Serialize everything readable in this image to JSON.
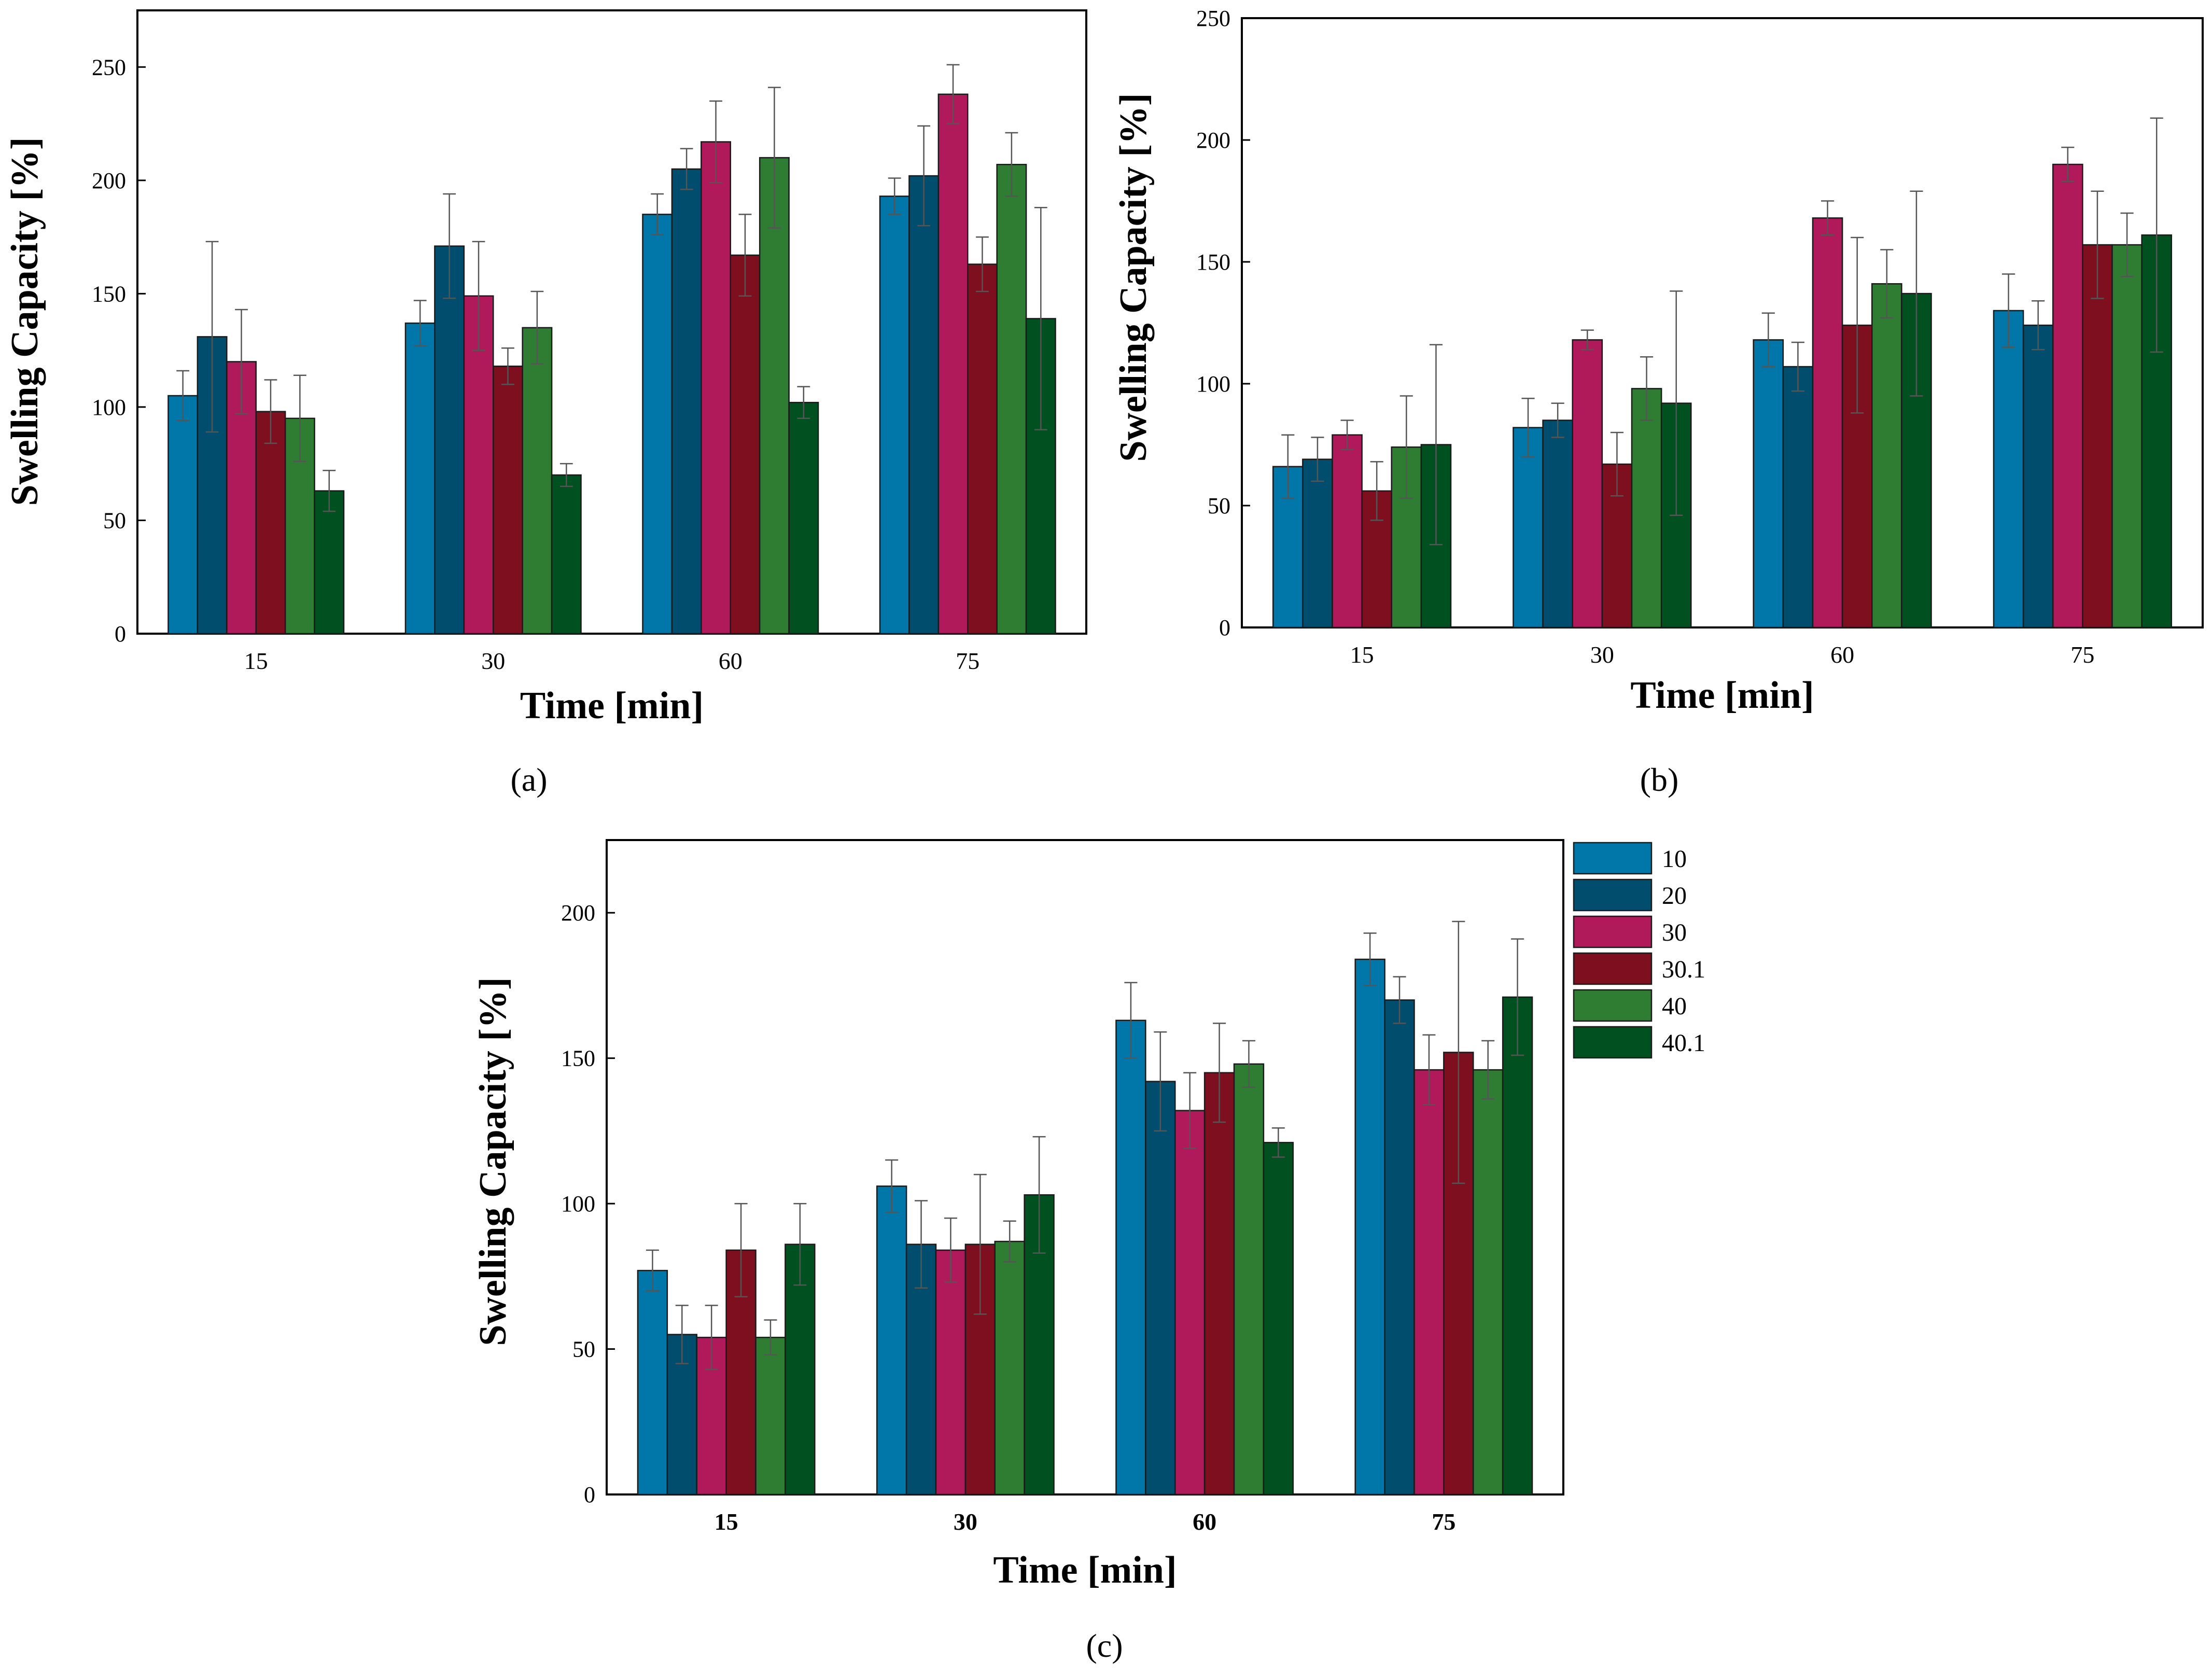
{
  "colors": {
    "10": "#0077a8",
    "20": "#004d6e",
    "30": "#b0195a",
    "30.1": "#7d0f1f",
    "40": "#2e7d32",
    "40.1": "#00511f"
  },
  "legend": {
    "entries": [
      "10",
      "20",
      "30",
      "30.1",
      "40",
      "40.1"
    ]
  },
  "chart_data": [
    {
      "type": "bar",
      "panel_label": "(a)",
      "xlabel": "Time [min]",
      "ylabel": "Swelling Capacity [%]",
      "categories": [
        "15",
        "30",
        "60",
        "75"
      ],
      "ylim": [
        0,
        275
      ],
      "yticks": [
        0,
        50,
        100,
        150,
        200,
        250
      ],
      "series": [
        {
          "name": "10",
          "values": [
            105,
            137,
            185,
            193
          ],
          "errors": [
            11,
            10,
            9,
            8
          ]
        },
        {
          "name": "20",
          "values": [
            131,
            171,
            205,
            202
          ],
          "errors": [
            42,
            23,
            9,
            22
          ]
        },
        {
          "name": "30",
          "values": [
            120,
            149,
            217,
            238
          ],
          "errors": [
            23,
            24,
            18,
            13
          ]
        },
        {
          "name": "30.1",
          "values": [
            98,
            118,
            167,
            163
          ],
          "errors": [
            14,
            8,
            18,
            12
          ]
        },
        {
          "name": "40",
          "values": [
            95,
            135,
            210,
            207
          ],
          "errors": [
            19,
            16,
            31,
            14
          ]
        },
        {
          "name": "40.1",
          "values": [
            63,
            70,
            102,
            139
          ],
          "errors": [
            9,
            5,
            7,
            49
          ]
        }
      ]
    },
    {
      "type": "bar",
      "panel_label": "(b)",
      "xlabel": "Time [min]",
      "ylabel": "Swelling Capacity [%]",
      "categories": [
        "15",
        "30",
        "60",
        "75"
      ],
      "ylim": [
        0,
        250
      ],
      "yticks": [
        0,
        50,
        100,
        150,
        200,
        250
      ],
      "series": [
        {
          "name": "10",
          "values": [
            66,
            82,
            118,
            130
          ],
          "errors": [
            13,
            12,
            11,
            15
          ]
        },
        {
          "name": "20",
          "values": [
            69,
            85,
            107,
            124
          ],
          "errors": [
            9,
            7,
            10,
            10
          ]
        },
        {
          "name": "30",
          "values": [
            79,
            118,
            168,
            190
          ],
          "errors": [
            6,
            4,
            7,
            7
          ]
        },
        {
          "name": "30.1",
          "values": [
            56,
            67,
            124,
            157
          ],
          "errors": [
            12,
            13,
            36,
            22
          ]
        },
        {
          "name": "40",
          "values": [
            74,
            98,
            141,
            157
          ],
          "errors": [
            21,
            13,
            14,
            13
          ]
        },
        {
          "name": "40.1",
          "values": [
            75,
            92,
            137,
            161
          ],
          "errors": [
            41,
            46,
            42,
            48
          ]
        }
      ]
    },
    {
      "type": "bar",
      "panel_label": "(c)",
      "xlabel": "Time [min]",
      "ylabel": "Swelling Capacity [%]",
      "categories": [
        "15",
        "30",
        "60",
        "75"
      ],
      "ylim": [
        0,
        225
      ],
      "yticks": [
        0,
        50,
        100,
        150,
        200
      ],
      "series": [
        {
          "name": "10",
          "values": [
            77,
            106,
            163,
            184
          ],
          "errors": [
            7,
            9,
            13,
            9
          ]
        },
        {
          "name": "20",
          "values": [
            55,
            86,
            142,
            170
          ],
          "errors": [
            10,
            15,
            17,
            8
          ]
        },
        {
          "name": "30",
          "values": [
            54,
            84,
            132,
            146
          ],
          "errors": [
            11,
            11,
            13,
            12
          ]
        },
        {
          "name": "30.1",
          "values": [
            84,
            86,
            145,
            152
          ],
          "errors": [
            16,
            24,
            17,
            45
          ]
        },
        {
          "name": "40",
          "values": [
            54,
            87,
            148,
            146
          ],
          "errors": [
            6,
            7,
            8,
            10
          ]
        },
        {
          "name": "40.1",
          "values": [
            86,
            103,
            121,
            171
          ],
          "errors": [
            14,
            20,
            5,
            20
          ]
        }
      ]
    }
  ]
}
